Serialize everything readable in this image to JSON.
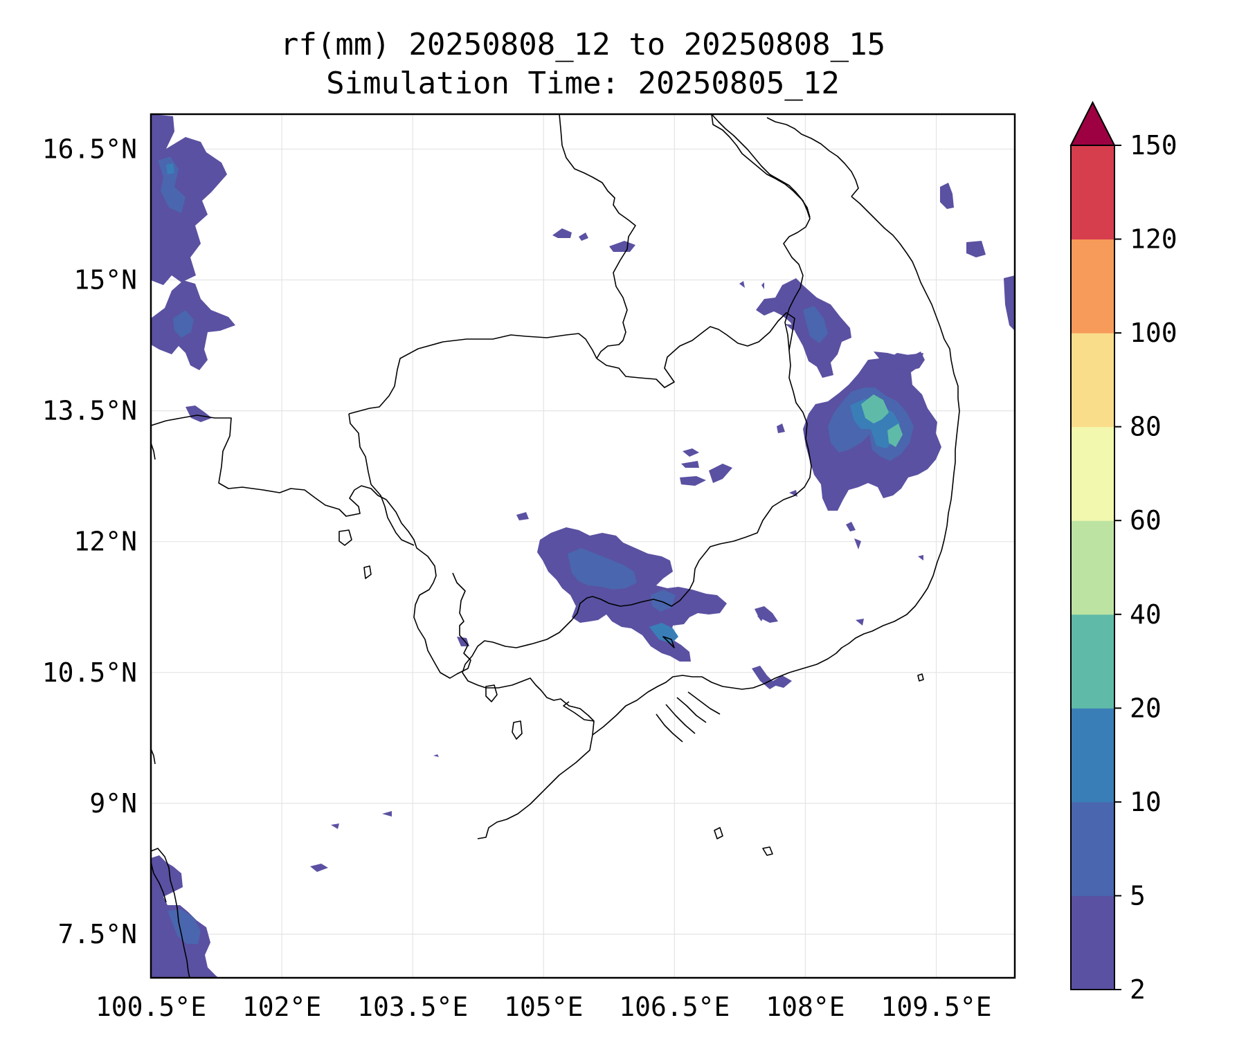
{
  "title": {
    "line1": "rf(mm) 20250808_12 to 20250808_15",
    "line2": "Simulation Time: 20250805_12"
  },
  "map": {
    "lon_range_deg": [
      100.5,
      110.4
    ],
    "lat_range_deg": [
      7.0,
      16.9
    ],
    "gridlines": true,
    "coastline_color": "#000000",
    "region": "Cambodia / southern Laos / southern Vietnam / eastern Thailand"
  },
  "axes": {
    "x_ticks": [
      {
        "value": 100.5,
        "label": "100.5°E"
      },
      {
        "value": 102.0,
        "label": "102°E"
      },
      {
        "value": 103.5,
        "label": "103.5°E"
      },
      {
        "value": 105.0,
        "label": "105°E"
      },
      {
        "value": 106.5,
        "label": "106.5°E"
      },
      {
        "value": 108.0,
        "label": "108°E"
      },
      {
        "value": 109.5,
        "label": "109.5°E"
      }
    ],
    "y_ticks": [
      {
        "value": 16.5,
        "label": "16.5°N"
      },
      {
        "value": 15.0,
        "label": "15°N"
      },
      {
        "value": 13.5,
        "label": "13.5°N"
      },
      {
        "value": 12.0,
        "label": "12°N"
      },
      {
        "value": 10.5,
        "label": "10.5°N"
      },
      {
        "value": 9.0,
        "label": "9°N"
      },
      {
        "value": 7.5,
        "label": "7.5°N"
      }
    ]
  },
  "colorbar": {
    "levels": [
      "2",
      "5",
      "10",
      "20",
      "40",
      "60",
      "80",
      "100",
      "120",
      "150"
    ],
    "colors": [
      "#5a51a2",
      "#4a66ae",
      "#3a7eb8",
      "#5fbba8",
      "#bde3a2",
      "#f2f8ae",
      "#fadd8b",
      "#f79b5a",
      "#d63d4d"
    ],
    "extend_color": "#9e0142",
    "extend": "max"
  },
  "rain_areas": [
    {
      "name": "west-edge-north",
      "lon": 100.8,
      "lat": 16.1,
      "level_mm": "2-5"
    },
    {
      "name": "west-edge-mid",
      "lon": 100.9,
      "lat": 14.8,
      "level_mm": "2-5"
    },
    {
      "name": "central-highlands",
      "lon": 108.2,
      "lat": 13.3,
      "level_mm": "20-40"
    },
    {
      "name": "east-cambodia-north",
      "lon": 108.0,
      "lat": 14.7,
      "level_mm": "5-10"
    },
    {
      "name": "south-cambodia",
      "lon": 105.6,
      "lat": 11.5,
      "level_mm": "10-20"
    },
    {
      "name": "southwest-corner",
      "lon": 100.9,
      "lat": 7.5,
      "level_mm": "2-5"
    },
    {
      "name": "east-coast-offshore",
      "lon": 109.6,
      "lat": 15.4,
      "level_mm": "2-5"
    }
  ]
}
